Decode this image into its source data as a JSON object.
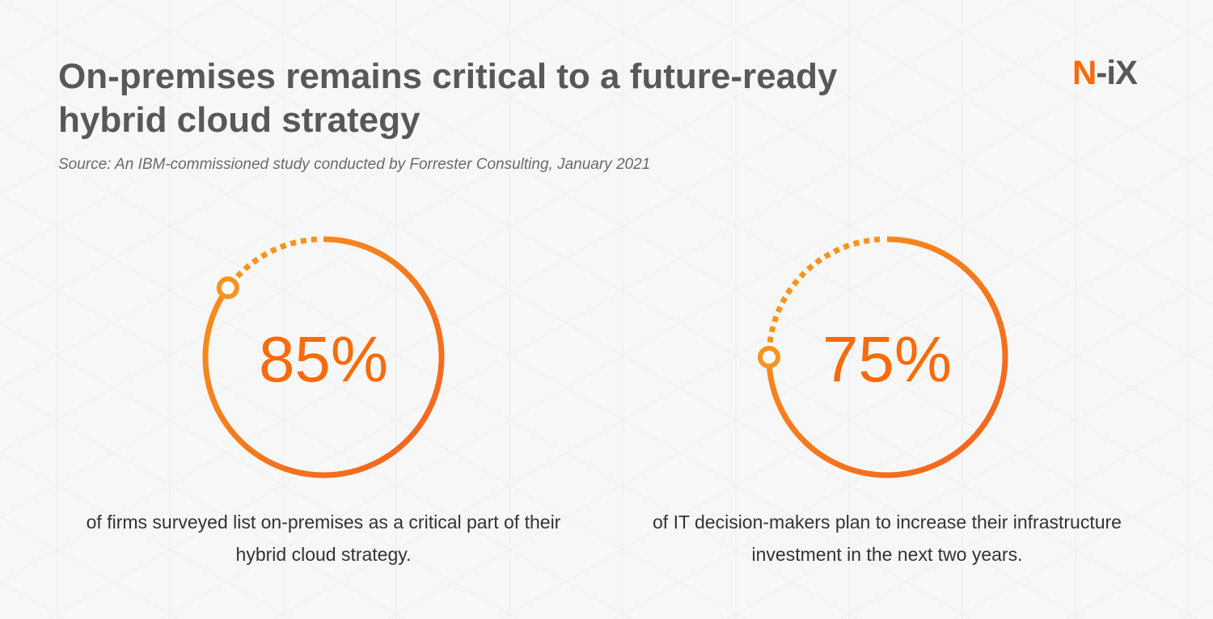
{
  "header": {
    "title": "On-premises remains critical to a future-ready hybrid cloud strategy",
    "source": "Source: An IBM-commissioned study conducted by Forrester Consulting, January 2021",
    "logo_text": "N-iX",
    "watermark_text": "N-iX"
  },
  "colors": {
    "accent_start": "#f7941d",
    "accent_end": "#f2611f",
    "title": "#58585a"
  },
  "chart_data": [
    {
      "type": "pie",
      "style": "progress-ring",
      "value": 85,
      "max": 100,
      "label": "85%",
      "caption": "of firms surveyed list on-premises as a critical part of their hybrid cloud strategy."
    },
    {
      "type": "pie",
      "style": "progress-ring",
      "value": 75,
      "max": 100,
      "label": "75%",
      "caption": "of IT decision-makers plan to increase their infrastructure investment in the next two years."
    }
  ]
}
